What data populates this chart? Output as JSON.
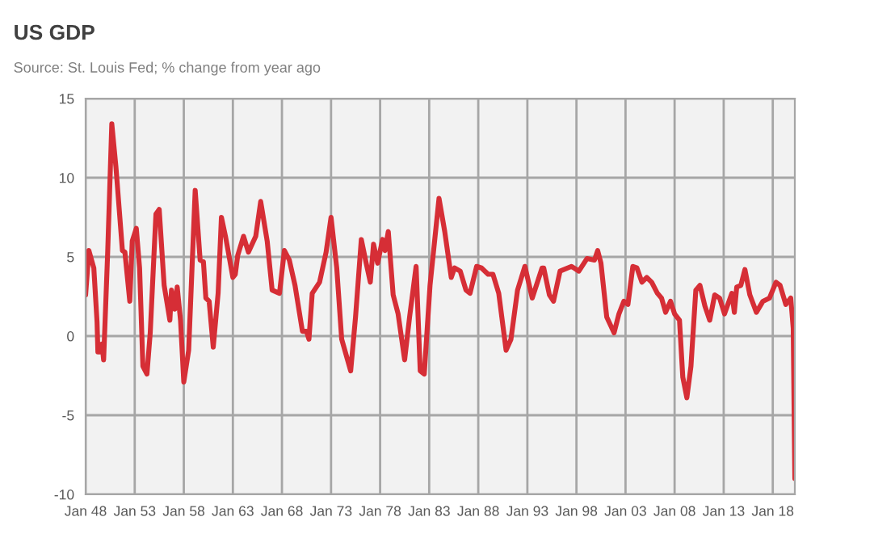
{
  "chart_data": {
    "type": "line",
    "title": "US GDP",
    "subtitle": "Source: St. Louis Fed; % change from year ago",
    "x": [
      "1948-01",
      "1948-05",
      "1948-11",
      "1949-03",
      "1949-04",
      "1949-08",
      "1949-09",
      "1949-11",
      "1950-04",
      "1950-09",
      "1951-02",
      "1951-10",
      "1952-01",
      "1952-07",
      "1952-10",
      "1953-03",
      "1953-07",
      "1953-11",
      "1954-04",
      "1954-08",
      "1955-03",
      "1955-07",
      "1956-01",
      "1956-08",
      "1956-10",
      "1957-02",
      "1957-05",
      "1957-09",
      "1958-01",
      "1958-07",
      "1959-03",
      "1959-09",
      "1960-01",
      "1960-04",
      "1960-08",
      "1961-01",
      "1961-07",
      "1961-11",
      "1962-04",
      "1963-01",
      "1963-04",
      "1963-07",
      "1964-02",
      "1964-08",
      "1965-05",
      "1965-11",
      "1966-07",
      "1967-01",
      "1967-10",
      "1968-04",
      "1968-10",
      "1969-05",
      "1970-02",
      "1970-07",
      "1970-10",
      "1971-02",
      "1971-11",
      "1972-07",
      "1973-01",
      "1973-08",
      "1974-02",
      "1975-01",
      "1975-07",
      "1976-02",
      "1976-08",
      "1977-01",
      "1977-05",
      "1977-10",
      "1978-04",
      "1978-07",
      "1978-11",
      "1979-05",
      "1979-11",
      "1980-07",
      "1981-01",
      "1981-09",
      "1982-02",
      "1982-07",
      "1983-02",
      "1984-01",
      "1984-08",
      "1985-04",
      "1985-08",
      "1986-03",
      "1986-10",
      "1987-03",
      "1987-11",
      "1988-05",
      "1989-01",
      "1989-07",
      "1990-02",
      "1990-11",
      "1991-05",
      "1992-01",
      "1992-10",
      "1993-07",
      "1994-07",
      "1994-09",
      "1995-04",
      "1995-09",
      "1996-05",
      "1997-07",
      "1998-04",
      "1999-02",
      "1999-11",
      "2000-03",
      "2000-07",
      "2001-02",
      "2001-11",
      "2002-05",
      "2002-11",
      "2003-04",
      "2003-10",
      "2004-03",
      "2004-09",
      "2005-03",
      "2005-09",
      "2006-04",
      "2006-09",
      "2007-02",
      "2007-08",
      "2008-01",
      "2008-07",
      "2008-11",
      "2009-04",
      "2009-09",
      "2010-03",
      "2010-08",
      "2011-02",
      "2011-08",
      "2012-02",
      "2012-08",
      "2013-02",
      "2013-11",
      "2014-02",
      "2014-05",
      "2014-10",
      "2015-03",
      "2015-09",
      "2016-05",
      "2017-01",
      "2017-09",
      "2018-05",
      "2018-10",
      "2019-05",
      "2019-11",
      "2020-02",
      "2020-04"
    ],
    "series": [
      {
        "color": "#d62e36",
        "values": [
          2.6,
          5.4,
          4.3,
          0.9,
          -1.0,
          -1.0,
          -0.5,
          -1.5,
          5.3,
          13.4,
          10.7,
          5.4,
          5.3,
          2.2,
          6.0,
          6.8,
          4.3,
          -1.9,
          -2.4,
          0.2,
          7.7,
          8.0,
          3.2,
          1.0,
          2.9,
          1.7,
          3.1,
          1.0,
          -2.9,
          -0.9,
          9.2,
          4.8,
          4.7,
          2.4,
          2.2,
          -0.7,
          2.7,
          7.5,
          6.3,
          3.7,
          3.9,
          5.1,
          6.3,
          5.3,
          6.3,
          8.5,
          6.0,
          2.9,
          2.7,
          5.4,
          4.8,
          3.2,
          0.3,
          0.3,
          -0.2,
          2.7,
          3.4,
          5.3,
          7.5,
          4.3,
          -0.2,
          -2.2,
          1.2,
          6.1,
          4.6,
          3.4,
          5.8,
          4.6,
          6.1,
          5.4,
          6.6,
          2.6,
          1.4,
          -1.5,
          1.2,
          4.4,
          -2.2,
          -2.4,
          3.2,
          8.7,
          6.6,
          3.7,
          4.3,
          4.1,
          2.9,
          2.7,
          4.4,
          4.3,
          3.9,
          3.9,
          2.7,
          -0.9,
          -0.2,
          2.9,
          4.4,
          2.4,
          4.3,
          4.3,
          2.6,
          2.2,
          4.1,
          4.4,
          4.1,
          4.9,
          4.8,
          5.4,
          4.6,
          1.2,
          0.2,
          1.4,
          2.2,
          2.0,
          4.4,
          4.3,
          3.4,
          3.7,
          3.4,
          2.7,
          2.4,
          1.5,
          2.2,
          1.4,
          1.0,
          -2.6,
          -3.9,
          -1.9,
          2.9,
          3.2,
          1.9,
          1.0,
          2.6,
          2.4,
          1.4,
          2.7,
          1.5,
          3.1,
          3.2,
          4.2,
          2.6,
          1.5,
          2.2,
          2.4,
          3.4,
          3.2,
          2.0,
          2.4,
          0.5,
          -9.0
        ]
      }
    ],
    "xlim": [
      "1948-01",
      "2020-04"
    ],
    "xticks": [
      {
        "value": "1948-01",
        "label": "Jan 48"
      },
      {
        "value": "1953-01",
        "label": "Jan 53"
      },
      {
        "value": "1958-01",
        "label": "Jan 58"
      },
      {
        "value": "1963-01",
        "label": "Jan 63"
      },
      {
        "value": "1968-01",
        "label": "Jan 68"
      },
      {
        "value": "1973-01",
        "label": "Jan 73"
      },
      {
        "value": "1978-01",
        "label": "Jan 78"
      },
      {
        "value": "1983-01",
        "label": "Jan 83"
      },
      {
        "value": "1988-01",
        "label": "Jan 88"
      },
      {
        "value": "1993-01",
        "label": "Jan 93"
      },
      {
        "value": "1998-01",
        "label": "Jan 98"
      },
      {
        "value": "2003-01",
        "label": "Jan 03"
      },
      {
        "value": "2008-01",
        "label": "Jan 08"
      },
      {
        "value": "2013-01",
        "label": "Jan 13"
      },
      {
        "value": "2018-01",
        "label": "Jan 18"
      }
    ],
    "ylim": [
      -10,
      15
    ],
    "yticks": [
      -10,
      -5,
      0,
      5,
      10,
      15
    ],
    "grid": true,
    "line_style": "solid",
    "marker": "none"
  }
}
